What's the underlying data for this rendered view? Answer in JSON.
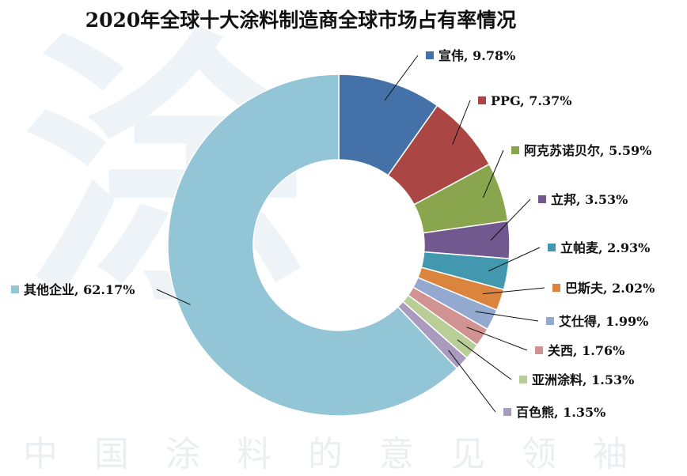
{
  "title": "2020年全球十大涂料制造商全球市场占有率情况",
  "watermark": {
    "glyph": "涂",
    "line": "中国涂料的意见领袖"
  },
  "chart_data": {
    "type": "pie",
    "style": "donut",
    "title": "2020年全球十大涂料制造商全球市场占有率情况",
    "slices": [
      {
        "name": "宣伟",
        "value": 9.78,
        "label": "宣伟, 9.78%",
        "color": "#4472a8"
      },
      {
        "name": "PPG",
        "value": 7.37,
        "label": "PPG, 7.37%",
        "color": "#aa4744"
      },
      {
        "name": "阿克苏诺贝尔",
        "value": 5.59,
        "label": "阿克苏诺贝尔, 5.59%",
        "color": "#89a54e"
      },
      {
        "name": "立邦",
        "value": 3.53,
        "label": "立邦, 3.53%",
        "color": "#71588f"
      },
      {
        "name": "立帕麦",
        "value": 2.93,
        "label": "立帕麦, 2.93%",
        "color": "#4198af"
      },
      {
        "name": "巴斯夫",
        "value": 2.02,
        "label": "巴斯夫, 2.02%",
        "color": "#db843d"
      },
      {
        "name": "艾仕得",
        "value": 1.99,
        "label": "艾仕得, 1.99%",
        "color": "#93a9cf"
      },
      {
        "name": "关西",
        "value": 1.76,
        "label": "关西, 1.76%",
        "color": "#d19392"
      },
      {
        "name": "亚洲涂料",
        "value": 1.53,
        "label": "亚洲涂料, 1.53%",
        "color": "#b9cd96"
      },
      {
        "name": "百色熊",
        "value": 1.35,
        "label": "百色熊, 1.35%",
        "color": "#a99bbd"
      },
      {
        "name": "其他企业",
        "value": 62.17,
        "label": "其他企业, 62.17%",
        "color": "#92c5d5"
      }
    ]
  }
}
